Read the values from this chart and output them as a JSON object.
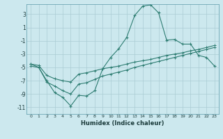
{
  "xlabel": "Humidex (Indice chaleur)",
  "bg_color": "#cce8ee",
  "grid_color": "#aaccd4",
  "line_color": "#2e7d72",
  "xlim": [
    -0.5,
    23.5
  ],
  "ylim": [
    -12.0,
    4.5
  ],
  "yticks": [
    3,
    1,
    -1,
    -3,
    -5,
    -7,
    -9,
    -11
  ],
  "xticks": [
    0,
    1,
    2,
    3,
    4,
    5,
    6,
    7,
    8,
    9,
    10,
    11,
    12,
    13,
    14,
    15,
    16,
    17,
    18,
    19,
    20,
    21,
    22,
    23
  ],
  "line1_x": [
    0,
    1,
    2,
    3,
    4,
    5,
    6,
    7,
    8,
    9,
    10,
    11,
    12,
    13,
    14,
    15,
    16,
    17,
    18,
    19,
    20,
    21,
    22,
    23
  ],
  "line1_y": [
    -4.5,
    -5.0,
    -7.0,
    -8.8,
    -9.5,
    -10.8,
    -9.2,
    -9.3,
    -8.5,
    -5.2,
    -3.5,
    -2.2,
    -0.5,
    2.8,
    4.2,
    4.4,
    3.2,
    -0.9,
    -0.8,
    -1.5,
    -1.5,
    -3.2,
    -3.5,
    -4.8
  ],
  "line2_x": [
    0,
    1,
    2,
    3,
    4,
    5,
    6,
    7,
    8,
    9,
    10,
    11,
    12,
    13,
    14,
    15,
    16,
    17,
    18,
    19,
    20,
    21,
    22,
    23
  ],
  "line2_y": [
    -4.5,
    -4.7,
    -6.2,
    -6.7,
    -7.0,
    -7.2,
    -6.0,
    -5.8,
    -5.5,
    -5.2,
    -5.0,
    -4.8,
    -4.5,
    -4.2,
    -4.0,
    -3.8,
    -3.5,
    -3.2,
    -3.0,
    -2.8,
    -2.5,
    -2.3,
    -2.0,
    -1.7
  ],
  "line3_x": [
    0,
    1,
    2,
    3,
    4,
    5,
    6,
    7,
    8,
    9,
    10,
    11,
    12,
    13,
    14,
    15,
    16,
    17,
    18,
    19,
    20,
    21,
    22,
    23
  ],
  "line3_y": [
    -4.8,
    -5.0,
    -7.2,
    -7.8,
    -8.5,
    -9.0,
    -7.5,
    -7.3,
    -6.8,
    -6.3,
    -6.0,
    -5.7,
    -5.4,
    -5.0,
    -4.7,
    -4.4,
    -4.1,
    -3.8,
    -3.5,
    -3.2,
    -2.9,
    -2.6,
    -2.3,
    -2.0
  ]
}
